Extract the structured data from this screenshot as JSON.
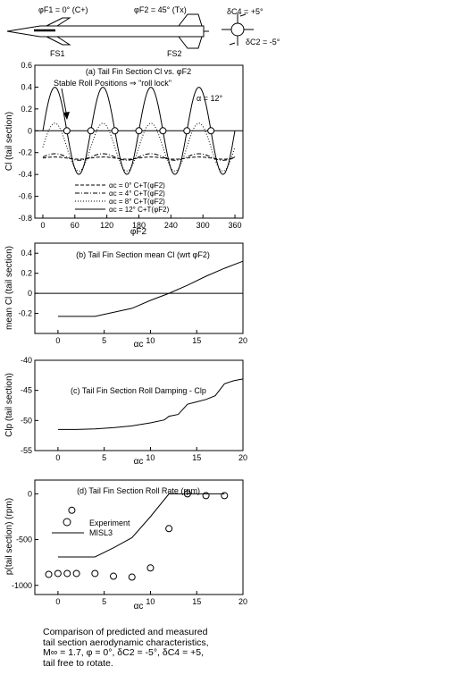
{
  "header": {
    "phi_f1_label": "φF1 = 0° (C+)",
    "phi_f2_label": "φF2 = 45° (Tx)",
    "fs1_label": "FS1",
    "fs2_label": "FS2",
    "delta_c4_label": "δC4 = +5°",
    "delta_c2_label": "δC2 = -5°"
  },
  "caption": {
    "line1": "Comparison of predicted and measured",
    "line2": "tail section aerodynamic characteristics,",
    "line3": "M∞ = 1.7, φ = 0°, δC2 = -5°, δC4 = +5,",
    "line4": "tail free to rotate."
  },
  "chart_data": [
    {
      "id": "a",
      "type": "line",
      "title": "(a) Tail Fin Section Cl vs. φF2",
      "xlabel": "φF2",
      "ylabel": "Cl (tail section)",
      "xlim": [
        -15,
        375
      ],
      "ylim": [
        -0.8,
        0.6
      ],
      "xticks": [
        0,
        60,
        120,
        180,
        240,
        300,
        360
      ],
      "yticks": [
        -0.8,
        -0.6,
        -0.4,
        -0.2,
        0,
        0.2,
        0.4,
        0.6
      ],
      "annotation_roll": "Stable Roll Positions ⇒ \"roll lock\"",
      "annotation_alpha": "α = 12°",
      "roll_lock_x": [
        45,
        90,
        135,
        180,
        225,
        270,
        315
      ],
      "series": [
        {
          "name": "αc = 0° C+T(φF2)",
          "style": "dashed",
          "mean": -0.25,
          "amp": 0.01,
          "phase": 0
        },
        {
          "name": "αc = 4° C+T(φF2)",
          "style": "dashdot",
          "mean": -0.24,
          "amp": 0.03,
          "phase": 0
        },
        {
          "name": "αc = 8° C+T(φF2)",
          "style": "dotted",
          "mean": -0.15,
          "amp": 0.22,
          "phase": 0
        },
        {
          "name": "αc = 12° C+T(φF2)",
          "style": "solid",
          "mean": 0.0,
          "amp": 0.4,
          "phase": 0
        }
      ]
    },
    {
      "id": "b",
      "type": "line",
      "title": "(b) Tail Fin Section mean Cl (wrt φF2)",
      "xlabel": "αc",
      "ylabel": "mean Cl (tail section)",
      "xlim": [
        -2.5,
        20
      ],
      "ylim": [
        -0.4,
        0.5
      ],
      "xticks": [
        0,
        5,
        10,
        15,
        20
      ],
      "yticks": [
        -0.2,
        0,
        0.2,
        0.4
      ],
      "x": [
        0,
        2,
        4,
        6,
        8,
        10,
        12,
        14,
        16,
        18,
        20
      ],
      "y": [
        -0.23,
        -0.23,
        -0.23,
        -0.19,
        -0.15,
        -0.07,
        0.0,
        0.08,
        0.17,
        0.25,
        0.32
      ]
    },
    {
      "id": "c",
      "type": "line",
      "title": "(c) Tail Fin Section Roll Damping - Clp",
      "xlabel": "αc",
      "ylabel": "Clp (tail section)",
      "xlim": [
        -2.5,
        20
      ],
      "ylim": [
        -55,
        -40
      ],
      "xticks": [
        0,
        5,
        10,
        15,
        20
      ],
      "yticks": [
        -55,
        -50,
        -45,
        -40
      ],
      "x": [
        0,
        2,
        4,
        6,
        8,
        10,
        11.5,
        12,
        13,
        14,
        15,
        16,
        17,
        18,
        19,
        20
      ],
      "y": [
        -51.5,
        -51.5,
        -51.4,
        -51.2,
        -50.9,
        -50.4,
        -49.9,
        -49.3,
        -49.0,
        -47.3,
        -46.9,
        -46.5,
        -45.9,
        -43.9,
        -43.4,
        -43.1
      ]
    },
    {
      "id": "d",
      "type": "line",
      "title": "(d) Tail Fin Section Roll Rate (rpm)",
      "xlabel": "αc",
      "ylabel": "p(tail section) (rpm)",
      "xlim": [
        -2.5,
        20
      ],
      "ylim": [
        -1100,
        150
      ],
      "xticks": [
        0,
        5,
        10,
        15,
        20
      ],
      "yticks": [
        -1000,
        -500,
        0
      ],
      "legend": [
        "Experiment",
        "MISL3"
      ],
      "model_x": [
        0,
        2,
        4,
        6,
        8,
        10,
        12,
        14,
        16,
        18
      ],
      "model_y": [
        -690,
        -690,
        -690,
        -590,
        -480,
        -250,
        0,
        0,
        0,
        0
      ],
      "exp_x": [
        -1,
        0,
        1,
        2,
        4,
        6,
        8,
        10,
        12,
        14,
        16,
        18,
        1.5
      ],
      "exp_y": [
        -880,
        -870,
        -870,
        -870,
        -870,
        -900,
        -910,
        -810,
        -380,
        0,
        -20,
        -20,
        -180
      ]
    }
  ]
}
